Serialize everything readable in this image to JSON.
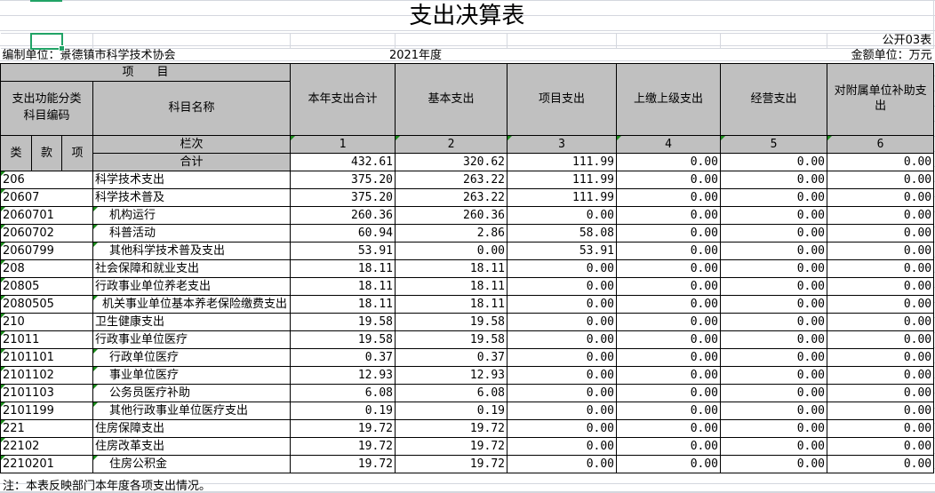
{
  "title": "支出决算表",
  "form_no": "公开03表",
  "unit_label": "编制单位：景德镇市科学技术协会",
  "year": "2021年度",
  "currency_unit": "金额单位：万元",
  "headers": {
    "item": "项　　目",
    "code_l1": "支出功能分类",
    "code_l2": "科目编码",
    "name": "科目名称",
    "lei": "类",
    "kuan": "款",
    "xiang": "项",
    "lanci": "栏次",
    "heji": "合计",
    "cols": [
      "本年支出合计",
      "基本支出",
      "项目支出",
      "上缴上级支出",
      "经营支出",
      "对附属单位补助支出"
    ],
    "col_nums": [
      "1",
      "2",
      "3",
      "4",
      "5",
      "6"
    ]
  },
  "total": [
    "432.61",
    "320.62",
    "111.99",
    "0.00",
    "0.00",
    "0.00"
  ],
  "rows": [
    {
      "code": "206",
      "name": "科学技术支出",
      "level": 1,
      "values": [
        "375.20",
        "263.22",
        "111.99",
        "0.00",
        "0.00",
        "0.00"
      ]
    },
    {
      "code": "20607",
      "name": "科学技术普及",
      "level": 2,
      "values": [
        "375.20",
        "263.22",
        "111.99",
        "0.00",
        "0.00",
        "0.00"
      ]
    },
    {
      "code": "2060701",
      "name": "机构运行",
      "level": 3,
      "values": [
        "260.36",
        "260.36",
        "0.00",
        "0.00",
        "0.00",
        "0.00"
      ]
    },
    {
      "code": "2060702",
      "name": "科普活动",
      "level": 3,
      "values": [
        "60.94",
        "2.86",
        "58.08",
        "0.00",
        "0.00",
        "0.00"
      ]
    },
    {
      "code": "2060799",
      "name": "其他科学技术普及支出",
      "level": 3,
      "values": [
        "53.91",
        "0.00",
        "53.91",
        "0.00",
        "0.00",
        "0.00"
      ]
    },
    {
      "code": "208",
      "name": "社会保障和就业支出",
      "level": 1,
      "values": [
        "18.11",
        "18.11",
        "0.00",
        "0.00",
        "0.00",
        "0.00"
      ]
    },
    {
      "code": "20805",
      "name": "行政事业单位养老支出",
      "level": 2,
      "values": [
        "18.11",
        "18.11",
        "0.00",
        "0.00",
        "0.00",
        "0.00"
      ]
    },
    {
      "code": "2080505",
      "name": "机关事业单位基本养老保险缴费支出",
      "level": 3,
      "small": true,
      "values": [
        "18.11",
        "18.11",
        "0.00",
        "0.00",
        "0.00",
        "0.00"
      ]
    },
    {
      "code": "210",
      "name": "卫生健康支出",
      "level": 1,
      "values": [
        "19.58",
        "19.58",
        "0.00",
        "0.00",
        "0.00",
        "0.00"
      ]
    },
    {
      "code": "21011",
      "name": "行政事业单位医疗",
      "level": 2,
      "values": [
        "19.58",
        "19.58",
        "0.00",
        "0.00",
        "0.00",
        "0.00"
      ]
    },
    {
      "code": "2101101",
      "name": "行政单位医疗",
      "level": 3,
      "values": [
        "0.37",
        "0.37",
        "0.00",
        "0.00",
        "0.00",
        "0.00"
      ]
    },
    {
      "code": "2101102",
      "name": "事业单位医疗",
      "level": 3,
      "values": [
        "12.93",
        "12.93",
        "0.00",
        "0.00",
        "0.00",
        "0.00"
      ]
    },
    {
      "code": "2101103",
      "name": "公务员医疗补助",
      "level": 3,
      "values": [
        "6.08",
        "6.08",
        "0.00",
        "0.00",
        "0.00",
        "0.00"
      ]
    },
    {
      "code": "2101199",
      "name": "其他行政事业单位医疗支出",
      "level": 3,
      "values": [
        "0.19",
        "0.19",
        "0.00",
        "0.00",
        "0.00",
        "0.00"
      ]
    },
    {
      "code": "221",
      "name": "住房保障支出",
      "level": 1,
      "values": [
        "19.72",
        "19.72",
        "0.00",
        "0.00",
        "0.00",
        "0.00"
      ]
    },
    {
      "code": "22102",
      "name": "住房改革支出",
      "level": 2,
      "values": [
        "19.72",
        "19.72",
        "0.00",
        "0.00",
        "0.00",
        "0.00"
      ]
    },
    {
      "code": "2210201",
      "name": "住房公积金",
      "level": 3,
      "values": [
        "19.72",
        "19.72",
        "0.00",
        "0.00",
        "0.00",
        "0.00"
      ]
    }
  ],
  "note": "注：本表反映部门本年度各项支出情况。",
  "colors": {
    "header_bg": "#c0c0c0",
    "selection": "#21a366",
    "gridline": "#d4d7de",
    "indicator": "#1a8a1a"
  }
}
